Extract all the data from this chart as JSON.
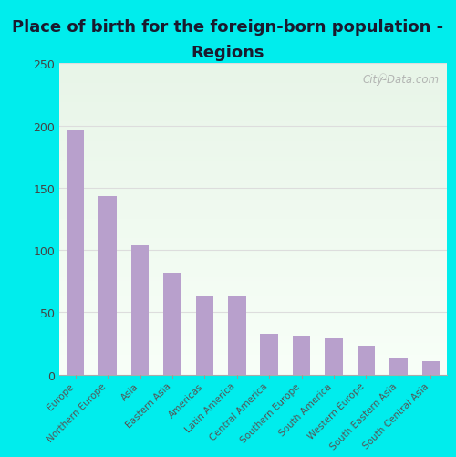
{
  "title_line1": "Place of birth for the foreign-born population -",
  "title_line2": "Regions",
  "categories": [
    "Europe",
    "Northern Europe",
    "Asia",
    "Eastern Asia",
    "Americas",
    "Latin America",
    "Central America",
    "Southern Europe",
    "South America",
    "Western Europe",
    "South Eastern Asia",
    "South Central Asia"
  ],
  "values": [
    197,
    143,
    104,
    82,
    63,
    63,
    33,
    31,
    29,
    23,
    13,
    11
  ],
  "bar_color": "#b8a0cc",
  "background_color": "#00eded",
  "plot_bg_topleft": "#e8f5e8",
  "plot_bg_bottomright": "#f8fff8",
  "grid_color": "#dddddd",
  "ylim": [
    0,
    250
  ],
  "yticks": [
    0,
    50,
    100,
    150,
    200,
    250
  ],
  "title_fontsize": 13,
  "tick_label_fontsize": 7.5,
  "ytick_fontsize": 9,
  "watermark": "City-Data.com"
}
